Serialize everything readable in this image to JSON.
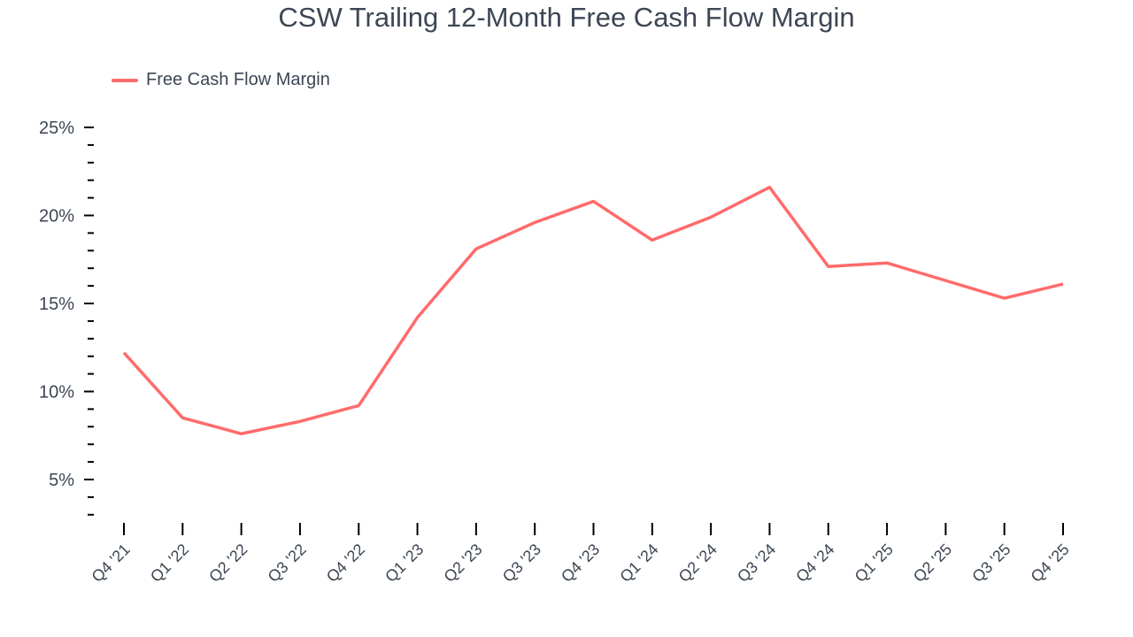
{
  "title": "CSW Trailing 12-Month Free Cash Flow Margin",
  "legend": {
    "label": "Free Cash Flow Margin",
    "color": "#ff6b6b"
  },
  "chart_data": {
    "type": "line",
    "title": "CSW Trailing 12-Month Free Cash Flow Margin",
    "xlabel": "",
    "ylabel": "",
    "categories": [
      "Q4 '21",
      "Q1 '22",
      "Q2 '22",
      "Q3 '22",
      "Q4 '22",
      "Q1 '23",
      "Q2 '23",
      "Q3 '23",
      "Q4 '23",
      "Q1 '24",
      "Q2 '24",
      "Q3 '24",
      "Q4 '24",
      "Q1 '25",
      "Q2 '25",
      "Q3 '25",
      "Q4 '25"
    ],
    "series": [
      {
        "name": "Free Cash Flow Margin",
        "color": "#ff6b6b",
        "values": [
          12.2,
          8.5,
          7.6,
          8.3,
          9.2,
          14.2,
          18.1,
          19.6,
          20.8,
          18.6,
          19.9,
          21.6,
          17.1,
          17.3,
          16.3,
          15.3,
          16.1
        ]
      }
    ],
    "yticks": [
      5,
      10,
      15,
      20,
      25
    ],
    "ytick_labels": [
      "5%",
      "10%",
      "15%",
      "20%",
      "25%"
    ],
    "ylim": [
      3,
      25
    ],
    "grid": false,
    "legend_position": "top-left"
  }
}
